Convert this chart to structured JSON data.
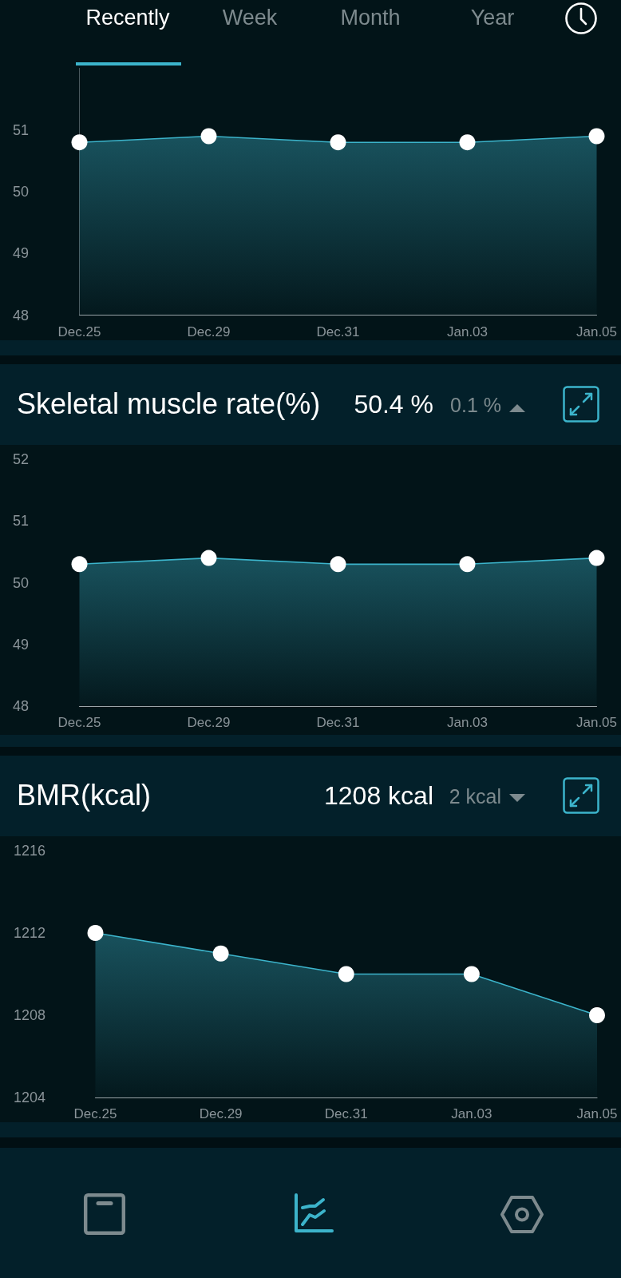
{
  "chart_data": [
    {
      "type": "area",
      "categories": [
        "Dec.25",
        "Dec.29",
        "Dec.31",
        "Jan.03",
        "Jan.05"
      ],
      "values": [
        50.8,
        50.9,
        50.8,
        50.8,
        50.9
      ],
      "color": "#3cb4cb",
      "ylim": [
        48,
        52
      ],
      "yticks": [
        48,
        49,
        50,
        51
      ],
      "marker": "circle",
      "annotations": [
        "Recently",
        "Week",
        "Month",
        "Year"
      ]
    },
    {
      "type": "area",
      "title": "Skeletal muscle rate(%)",
      "categories": [
        "Dec.25",
        "Dec.29",
        "Dec.31",
        "Jan.03",
        "Jan.05"
      ],
      "values": [
        50.3,
        50.4,
        50.3,
        50.3,
        50.4
      ],
      "color": "#3cb4cb",
      "ylim": [
        48,
        52
      ],
      "yticks": [
        48,
        49,
        50,
        51,
        52
      ],
      "marker": "circle",
      "annotations": [
        "50.4 %",
        "0.1 %"
      ]
    },
    {
      "type": "area",
      "title": "BMR(kcal)",
      "categories": [
        "Dec.25",
        "Dec.29",
        "Dec.31",
        "Jan.03",
        "Jan.05"
      ],
      "values": [
        1212,
        1211,
        1210,
        1210,
        1208
      ],
      "color": "#3cb4cb",
      "ylim": [
        1204,
        1216
      ],
      "yticks": [
        1204,
        1208,
        1212,
        1216
      ],
      "marker": "circle",
      "annotations": [
        "1208 kcal",
        "2 kcal"
      ]
    }
  ]
}
